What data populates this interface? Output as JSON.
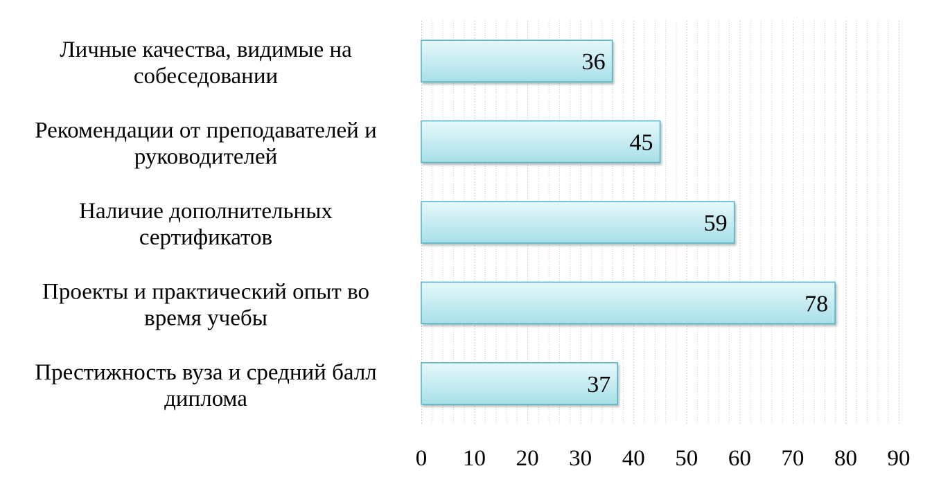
{
  "chart_data": {
    "type": "bar",
    "orientation": "horizontal",
    "categories": [
      [
        "Личные качества, видимые на",
        "собеседовании"
      ],
      [
        "Рекомендации от преподавателей и",
        "руководителей"
      ],
      [
        "Наличие дополнительных",
        "сертификатов"
      ],
      [
        "Проекты и практический опыт во",
        "время учебы"
      ],
      [
        "Престижность вуза и средний балл",
        "диплома"
      ]
    ],
    "values": [
      36,
      45,
      59,
      78,
      37
    ],
    "data_labels": [
      "36",
      "45",
      "59",
      "78",
      "37"
    ],
    "xlim": [
      0,
      90
    ],
    "x_ticks": [
      0,
      10,
      20,
      30,
      40,
      50,
      60,
      70,
      80,
      90
    ],
    "tick_labels": [
      "0",
      "10",
      "20",
      "30",
      "40",
      "50",
      "60",
      "70",
      "80",
      "90"
    ],
    "minor_grid_step": 2,
    "grid": true,
    "legend": false,
    "title": "",
    "xlabel": "",
    "ylabel": "",
    "colors": {
      "bar_fill_light": "#dff6f9",
      "bar_fill_dark": "#9fdbe4",
      "bar_edge": "#4fb3c4",
      "grid": "#cccccc"
    }
  }
}
